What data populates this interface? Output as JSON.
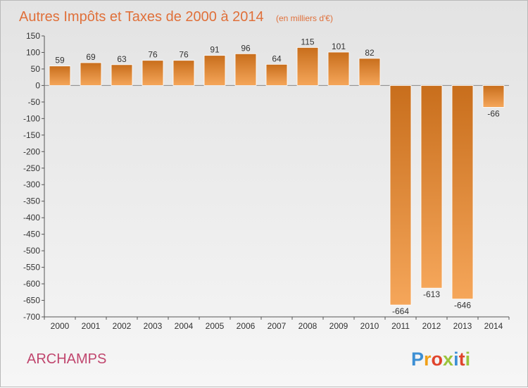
{
  "chart_data": {
    "type": "bar",
    "title": "Autres Impôts et Taxes de 2000 à 2014",
    "subtitle": "(en milliers d'€)",
    "xlabel": "",
    "ylabel": "",
    "categories": [
      "2000",
      "2001",
      "2002",
      "2003",
      "2004",
      "2005",
      "2006",
      "2007",
      "2008",
      "2009",
      "2010",
      "2011",
      "2012",
      "2013",
      "2014"
    ],
    "values": [
      59,
      69,
      63,
      76,
      76,
      91,
      96,
      64,
      115,
      101,
      82,
      -664,
      -613,
      -646,
      -66
    ],
    "value_labels": [
      "59",
      "69",
      "63",
      "76",
      "76",
      "91",
      "96",
      "64",
      "115",
      "101",
      "82",
      "-664",
      "-613",
      "-646",
      "-66"
    ],
    "ylim": [
      -700,
      150
    ],
    "yticks": [
      150,
      100,
      50,
      0,
      -50,
      -100,
      -150,
      -200,
      -250,
      -300,
      -350,
      -400,
      -450,
      -500,
      -550,
      -600,
      -650,
      -700
    ],
    "ytick_labels": [
      "150",
      "100",
      "50",
      "0",
      "-50",
      "-100",
      "-150",
      "-200",
      "-250",
      "-300",
      "-350",
      "-400",
      "-450",
      "-500",
      "-550",
      "-600",
      "-650",
      "-700"
    ],
    "grid": false,
    "legend": "none",
    "bar_color_light": "#f5a65a",
    "bar_color_dark": "#c86e1c"
  },
  "commune_name": "ARCHAMPS",
  "logo": {
    "letters": [
      "P",
      "r",
      "o",
      "x",
      "i",
      "t",
      "i"
    ],
    "colors": [
      "#3d8fd4",
      "#f0a018",
      "#e0442c",
      "#9bc43c",
      "#3d8fd4",
      "#e0442c",
      "#9bc43c"
    ]
  }
}
